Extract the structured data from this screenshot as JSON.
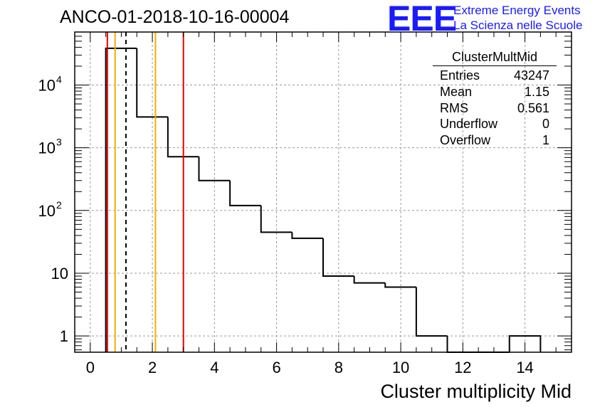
{
  "header": {
    "title": "ANCO-01-2018-10-16-00004"
  },
  "logo": {
    "mark": "EEE",
    "line1": "Extreme Energy Events",
    "line2": "La Scienza nelle Scuole",
    "color": "#1a1aff"
  },
  "stats_box": {
    "title": "ClusterMultMid",
    "rows": [
      {
        "label": "Entries",
        "value": "43247"
      },
      {
        "label": "Mean",
        "value": "1.15"
      },
      {
        "label": "RMS",
        "value": "0.561"
      },
      {
        "label": "Underflow",
        "value": "0"
      },
      {
        "label": "Overflow",
        "value": "1"
      }
    ]
  },
  "chart_data": {
    "type": "histogram",
    "title": "ANCO-01-2018-10-16-00004",
    "xlabel": "Cluster multiplicity Mid",
    "ylabel": "",
    "xlim": [
      -0.5,
      15.5
    ],
    "ylim": [
      0.55,
      70000
    ],
    "y_scale": "log",
    "grid": true,
    "x_ticks": [
      "0",
      "2",
      "4",
      "6",
      "8",
      "10",
      "12",
      "14"
    ],
    "x_tick_values": [
      0,
      2,
      4,
      6,
      8,
      10,
      12,
      14
    ],
    "y_ticks": [
      {
        "value": 1,
        "base": "1",
        "exp": ""
      },
      {
        "value": 10,
        "base": "10",
        "exp": ""
      },
      {
        "value": 100,
        "base": "10",
        "exp": "2"
      },
      {
        "value": 1000,
        "base": "10",
        "exp": "3"
      },
      {
        "value": 10000,
        "base": "10",
        "exp": "4"
      }
    ],
    "bins": [
      {
        "low": 0.5,
        "high": 1.5,
        "count": 38500
      },
      {
        "low": 1.5,
        "high": 2.5,
        "count": 3100
      },
      {
        "low": 2.5,
        "high": 3.5,
        "count": 720
      },
      {
        "low": 3.5,
        "high": 4.5,
        "count": 300
      },
      {
        "low": 4.5,
        "high": 5.5,
        "count": 120
      },
      {
        "low": 5.5,
        "high": 6.5,
        "count": 45
      },
      {
        "low": 6.5,
        "high": 7.5,
        "count": 36
      },
      {
        "low": 7.5,
        "high": 8.5,
        "count": 9
      },
      {
        "low": 8.5,
        "high": 9.5,
        "count": 7
      },
      {
        "low": 9.5,
        "high": 10.5,
        "count": 6
      },
      {
        "low": 10.5,
        "high": 11.5,
        "count": 1
      },
      {
        "low": 11.5,
        "high": 12.5,
        "count": 0
      },
      {
        "low": 12.5,
        "high": 13.5,
        "count": 0
      },
      {
        "low": 13.5,
        "high": 14.5,
        "count": 1
      }
    ],
    "vertical_lines": [
      {
        "x": 0.55,
        "color": "#e00000",
        "style": "solid",
        "name": "red-line-left"
      },
      {
        "x": 0.8,
        "color": "#f0b000",
        "style": "solid",
        "name": "orange-line-left"
      },
      {
        "x": 1.15,
        "color": "#000000",
        "style": "dashed",
        "name": "mean-dashed-line"
      },
      {
        "x": 2.1,
        "color": "#f0b000",
        "style": "solid",
        "name": "orange-line-right"
      },
      {
        "x": 3.0,
        "color": "#e00000",
        "style": "solid",
        "name": "red-line-right"
      }
    ]
  }
}
